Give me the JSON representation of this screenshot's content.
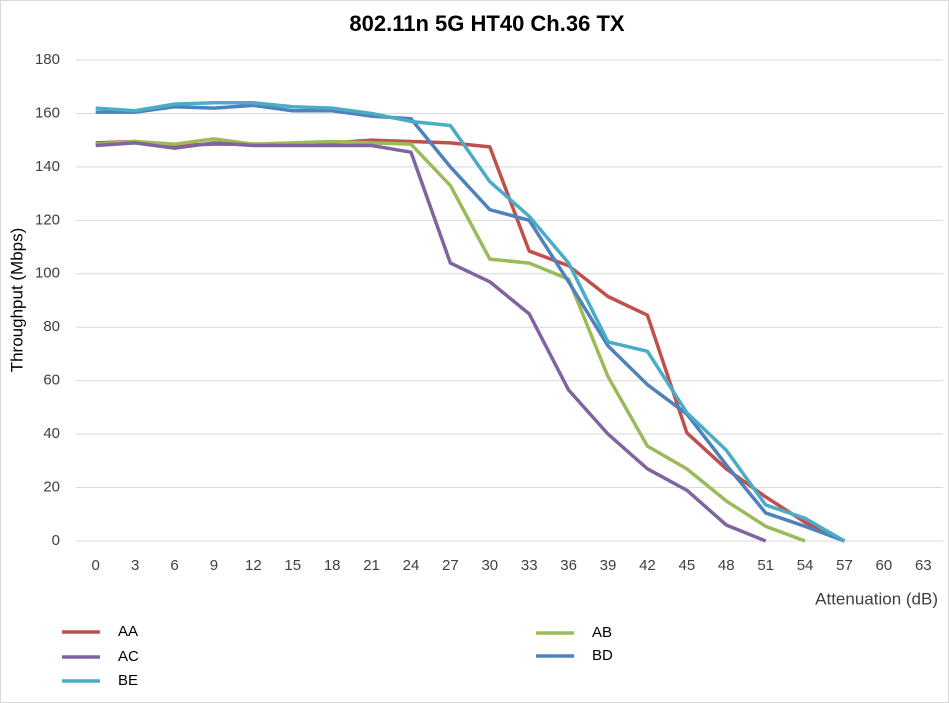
{
  "chart_data": {
    "type": "line",
    "title": "802.11n 5G HT40 Ch.36 TX",
    "x_label": "Attenuation (dB)",
    "y_label": "Throughput (Mbps)",
    "categories": [
      "0",
      "3",
      "6",
      "9",
      "12",
      "15",
      "18",
      "21",
      "24",
      "27",
      "30",
      "33",
      "36",
      "39",
      "42",
      "45",
      "48",
      "51",
      "54",
      "57",
      "60",
      "63"
    ],
    "ylim": [
      0,
      180
    ],
    "yticks": [
      0,
      20,
      40,
      60,
      80,
      100,
      120,
      140,
      160,
      180
    ],
    "grid": true,
    "series": [
      {
        "name": "AA",
        "color": "#c0504d",
        "values": [
          149,
          149.5,
          148,
          148.5,
          148.5,
          148.5,
          149,
          150,
          149.5,
          149,
          147.5,
          108.5,
          103,
          91.5,
          84.5,
          40.5,
          27,
          16.5,
          7,
          0,
          null,
          null
        ]
      },
      {
        "name": "AB",
        "color": "#9bbb59",
        "values": [
          148.5,
          149.5,
          148.5,
          150.5,
          148.5,
          149,
          149.5,
          149,
          148.5,
          133,
          105.5,
          104,
          98,
          61.5,
          35.5,
          27,
          15,
          5.5,
          0,
          null,
          null,
          null
        ]
      },
      {
        "name": "AC",
        "color": "#8064a2",
        "values": [
          148,
          149,
          147,
          149,
          148,
          148,
          148,
          148,
          145.5,
          104,
          97,
          85,
          56.5,
          40,
          27,
          19,
          6,
          0,
          null,
          null,
          null,
          null
        ]
      },
      {
        "name": "BD",
        "color": "#4f81bd",
        "values": [
          160.5,
          160.5,
          162.5,
          162,
          163,
          161,
          161,
          159,
          158,
          140,
          124,
          120,
          97,
          73,
          58.5,
          47.5,
          28.5,
          10.5,
          5.5,
          0,
          null,
          null
        ]
      },
      {
        "name": "BE",
        "color": "#4bacc6",
        "values": [
          162,
          161,
          163.5,
          164,
          164,
          162.5,
          162,
          160,
          157,
          155.5,
          134.5,
          121.5,
          104,
          74.5,
          71,
          48,
          34,
          13.5,
          8.5,
          0,
          null,
          null
        ]
      }
    ]
  }
}
